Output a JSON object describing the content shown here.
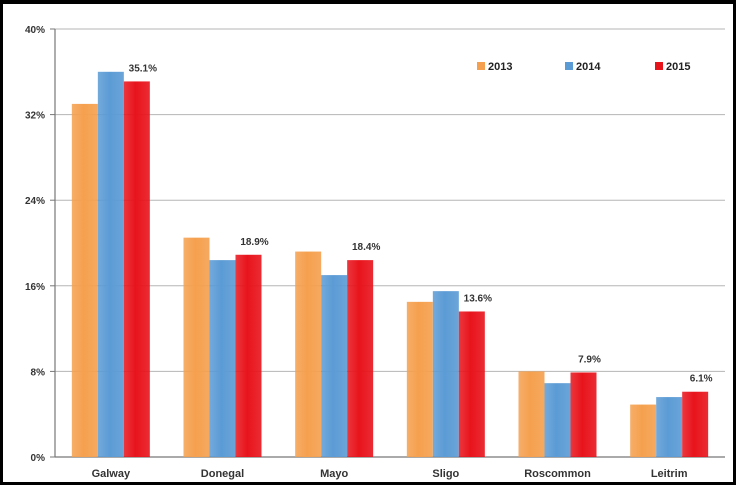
{
  "chart_data": {
    "type": "bar",
    "categories": [
      "Galway",
      "Donegal",
      "Mayo",
      "Sligo",
      "Roscommon",
      "Leitrim"
    ],
    "series": [
      {
        "name": "2013",
        "color": "#f5a04e",
        "values": [
          33.0,
          20.5,
          19.2,
          14.5,
          8.0,
          4.9
        ]
      },
      {
        "name": "2014",
        "color": "#5b9bd5",
        "values": [
          36.0,
          18.4,
          17.0,
          15.5,
          6.9,
          5.6
        ]
      },
      {
        "name": "2015",
        "color": "#e8141c",
        "values": [
          35.1,
          18.9,
          18.4,
          13.6,
          7.9,
          6.1
        ]
      }
    ],
    "data_labels": [
      "35.1%",
      "18.9%",
      "18.4%",
      "13.6%",
      "7.9%",
      "6.1%"
    ],
    "y_ticks": [
      "0%",
      "8%",
      "16%",
      "24%",
      "32%",
      "40%"
    ],
    "ylim": [
      0,
      40
    ],
    "grid": true,
    "legend_position": "top-right",
    "title": "",
    "xlabel": "",
    "ylabel": ""
  }
}
